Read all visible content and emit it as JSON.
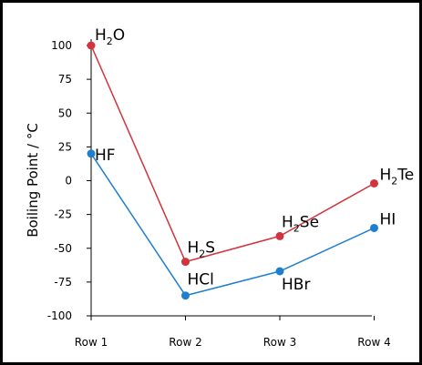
{
  "chart_data": {
    "type": "line",
    "title": "",
    "xlabel": "",
    "ylabel": "Boiling Point   / °C",
    "categories": [
      "Row 1",
      "Row 2",
      "Row 3",
      "Row 4"
    ],
    "ylim": [
      -100,
      100
    ],
    "yticks": [
      100,
      75,
      50,
      25,
      0,
      -25,
      -50,
      -75,
      -100
    ],
    "ytick_labels": [
      "100",
      "75",
      "50",
      "25",
      "0",
      "-25",
      "-50",
      "-75",
      "-100"
    ],
    "grid": false,
    "legend": "none",
    "series": [
      {
        "color": "#d1343d",
        "values": [
          100,
          -60,
          -41,
          -2
        ],
        "labels": [
          {
            "main": "H",
            "sub": "2",
            "rest": "O"
          },
          {
            "main": "H",
            "sub": "2",
            "rest": "S"
          },
          {
            "main": "H",
            "sub": "2",
            "rest": "Se"
          },
          {
            "main": "H",
            "sub": "2",
            "rest": "Te"
          }
        ]
      },
      {
        "color": "#1f7fcf",
        "values": [
          20,
          -85,
          -67,
          -35
        ],
        "labels": [
          {
            "main": "HF",
            "sub": "",
            "rest": ""
          },
          {
            "main": "HCl",
            "sub": "",
            "rest": ""
          },
          {
            "main": "HBr",
            "sub": "",
            "rest": ""
          },
          {
            "main": "HI",
            "sub": "",
            "rest": ""
          }
        ]
      }
    ]
  }
}
